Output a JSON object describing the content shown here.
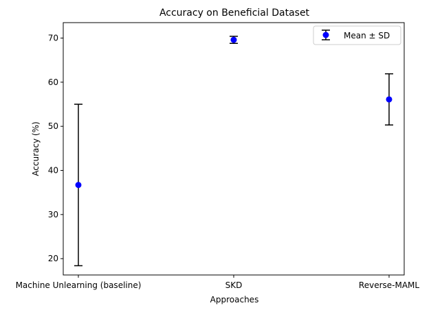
{
  "chart_data": {
    "type": "scatter",
    "title": "Accuracy on Beneficial Dataset",
    "xlabel": "Approaches",
    "ylabel": "Accuracy (%)",
    "categories": [
      "Machine Unlearning (baseline)",
      "SKD",
      "Reverse-MAML"
    ],
    "series": [
      {
        "name": "Mean ± SD",
        "values": [
          36.7,
          69.6,
          56.1
        ],
        "error": [
          18.3,
          0.8,
          5.8
        ],
        "color": "#0000ff"
      }
    ],
    "yticks": [
      20,
      30,
      40,
      50,
      60,
      70
    ],
    "ylim": [
      16.3,
      73.5
    ],
    "grid": false,
    "legend_position": "top-right",
    "errorbar_color": "#000000"
  }
}
